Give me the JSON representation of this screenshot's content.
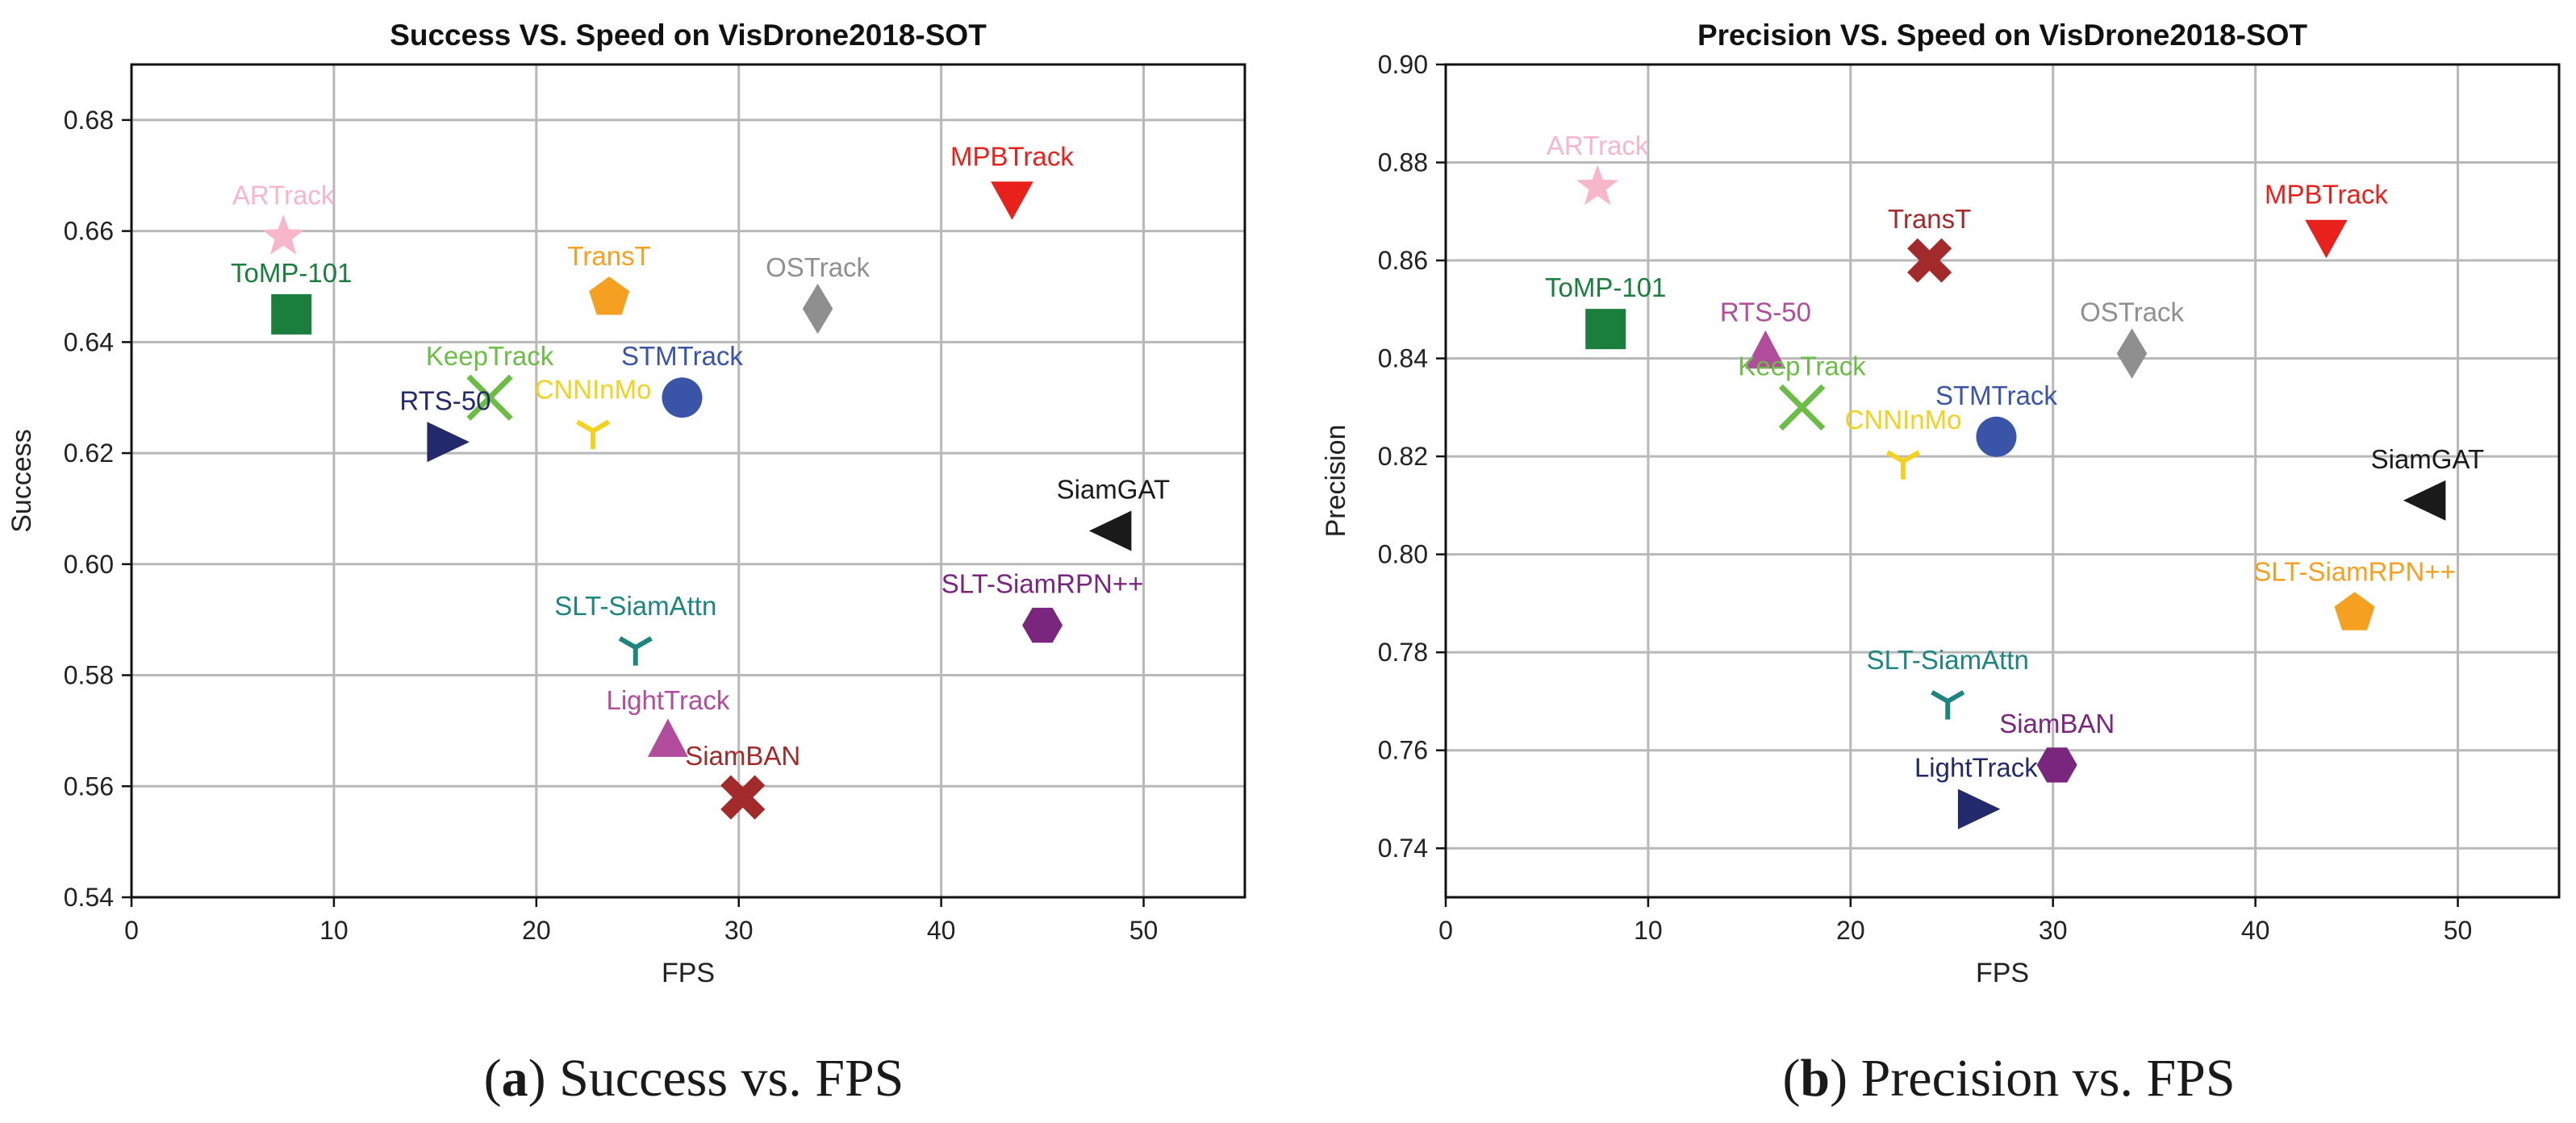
{
  "captions": [
    {
      "letter": "a",
      "text": "Success vs. FPS"
    },
    {
      "letter": "b",
      "text": "Precision vs. FPS"
    }
  ],
  "chart_data": [
    {
      "type": "scatter",
      "title": "Success VS. Speed on VisDrone2018-SOT",
      "xlabel": "FPS",
      "ylabel": "Success",
      "xlim": [
        0,
        55
      ],
      "ylim": [
        0.54,
        0.69
      ],
      "xticks": [
        0,
        10,
        20,
        30,
        40,
        50
      ],
      "yticks": [
        0.54,
        0.56,
        0.58,
        0.6,
        0.62,
        0.64,
        0.66,
        0.68
      ],
      "tick_decimals": 2,
      "grid": true,
      "points": [
        {
          "name": "ARTrack",
          "x": 7.5,
          "y": 0.659,
          "marker": "star",
          "color": "#f7b6c9"
        },
        {
          "name": "ToMP-101",
          "x": 7.9,
          "y": 0.645,
          "marker": "square",
          "color": "#1a7f3c"
        },
        {
          "name": "TransT",
          "x": 23.6,
          "y": 0.648,
          "marker": "pentagon",
          "color": "#f5a020"
        },
        {
          "name": "MPBTrack",
          "x": 43.5,
          "y": 0.666,
          "marker": "triangle-down",
          "color": "#e8211c"
        },
        {
          "name": "OSTrack",
          "x": 33.9,
          "y": 0.646,
          "marker": "diamond",
          "color": "#8f8f8f"
        },
        {
          "name": "KeepTrack",
          "x": 17.7,
          "y": 0.63,
          "marker": "x",
          "color": "#6cbd45"
        },
        {
          "name": "STMTrack",
          "x": 27.2,
          "y": 0.63,
          "marker": "circle",
          "color": "#3a55a8"
        },
        {
          "name": "CNNInMo",
          "x": 22.8,
          "y": 0.624,
          "marker": "tri-down",
          "color": "#f2d21e"
        },
        {
          "name": "RTS-50",
          "x": 15.5,
          "y": 0.622,
          "marker": "triangle-right",
          "color": "#232a6b"
        },
        {
          "name": "SiamGAT",
          "x": 48.5,
          "y": 0.606,
          "marker": "triangle-left",
          "color": "#1a1a1a"
        },
        {
          "name": "SLT-SiamRPN++",
          "x": 45.0,
          "y": 0.589,
          "marker": "hexagon",
          "color": "#7a267f"
        },
        {
          "name": "SLT-SiamAttn",
          "x": 24.9,
          "y": 0.585,
          "marker": "tri-down",
          "color": "#1d8580"
        },
        {
          "name": "LightTrack",
          "x": 26.5,
          "y": 0.568,
          "marker": "triangle-up",
          "color": "#b24c9c"
        },
        {
          "name": "SiamBAN",
          "x": 30.2,
          "y": 0.558,
          "marker": "cross",
          "color": "#a32a2a"
        }
      ]
    },
    {
      "type": "scatter",
      "title": "Precision VS. Speed on VisDrone2018-SOT",
      "xlabel": "FPS",
      "ylabel": "Precision",
      "xlim": [
        0,
        55
      ],
      "ylim": [
        0.73,
        0.9
      ],
      "xticks": [
        0,
        10,
        20,
        30,
        40,
        50
      ],
      "yticks": [
        0.74,
        0.76,
        0.78,
        0.8,
        0.82,
        0.84,
        0.86,
        0.88,
        0.9
      ],
      "tick_decimals": 2,
      "grid": true,
      "points": [
        {
          "name": "ARTrack",
          "x": 7.5,
          "y": 0.875,
          "marker": "star",
          "color": "#f7b6c9"
        },
        {
          "name": "TransT",
          "x": 23.9,
          "y": 0.86,
          "marker": "cross",
          "color": "#a32a2a"
        },
        {
          "name": "MPBTrack",
          "x": 43.5,
          "y": 0.865,
          "marker": "triangle-down",
          "color": "#e8211c"
        },
        {
          "name": "ToMP-101",
          "x": 7.9,
          "y": 0.846,
          "marker": "square",
          "color": "#1a7f3c"
        },
        {
          "name": "RTS-50",
          "x": 15.8,
          "y": 0.841,
          "marker": "triangle-up",
          "color": "#b24c9c"
        },
        {
          "name": "OSTrack",
          "x": 33.9,
          "y": 0.841,
          "marker": "diamond",
          "color": "#8f8f8f"
        },
        {
          "name": "KeepTrack",
          "x": 17.6,
          "y": 0.83,
          "marker": "x",
          "color": "#6cbd45"
        },
        {
          "name": "STMTrack",
          "x": 27.2,
          "y": 0.824,
          "marker": "circle",
          "color": "#3a55a8"
        },
        {
          "name": "CNNInMo",
          "x": 22.6,
          "y": 0.819,
          "marker": "tri-down",
          "color": "#f2d21e"
        },
        {
          "name": "SiamGAT",
          "x": 48.5,
          "y": 0.811,
          "marker": "triangle-left",
          "color": "#1a1a1a"
        },
        {
          "name": "SLT-SiamRPN++",
          "x": 44.9,
          "y": 0.788,
          "marker": "pentagon",
          "color": "#f5a020"
        },
        {
          "name": "SLT-SiamAttn",
          "x": 24.8,
          "y": 0.77,
          "marker": "tri-down",
          "color": "#1d8580"
        },
        {
          "name": "SiamBAN",
          "x": 30.2,
          "y": 0.757,
          "marker": "hexagon",
          "color": "#7a267f"
        },
        {
          "name": "LightTrack",
          "x": 26.2,
          "y": 0.748,
          "marker": "triangle-right",
          "color": "#232a6b"
        }
      ]
    }
  ]
}
